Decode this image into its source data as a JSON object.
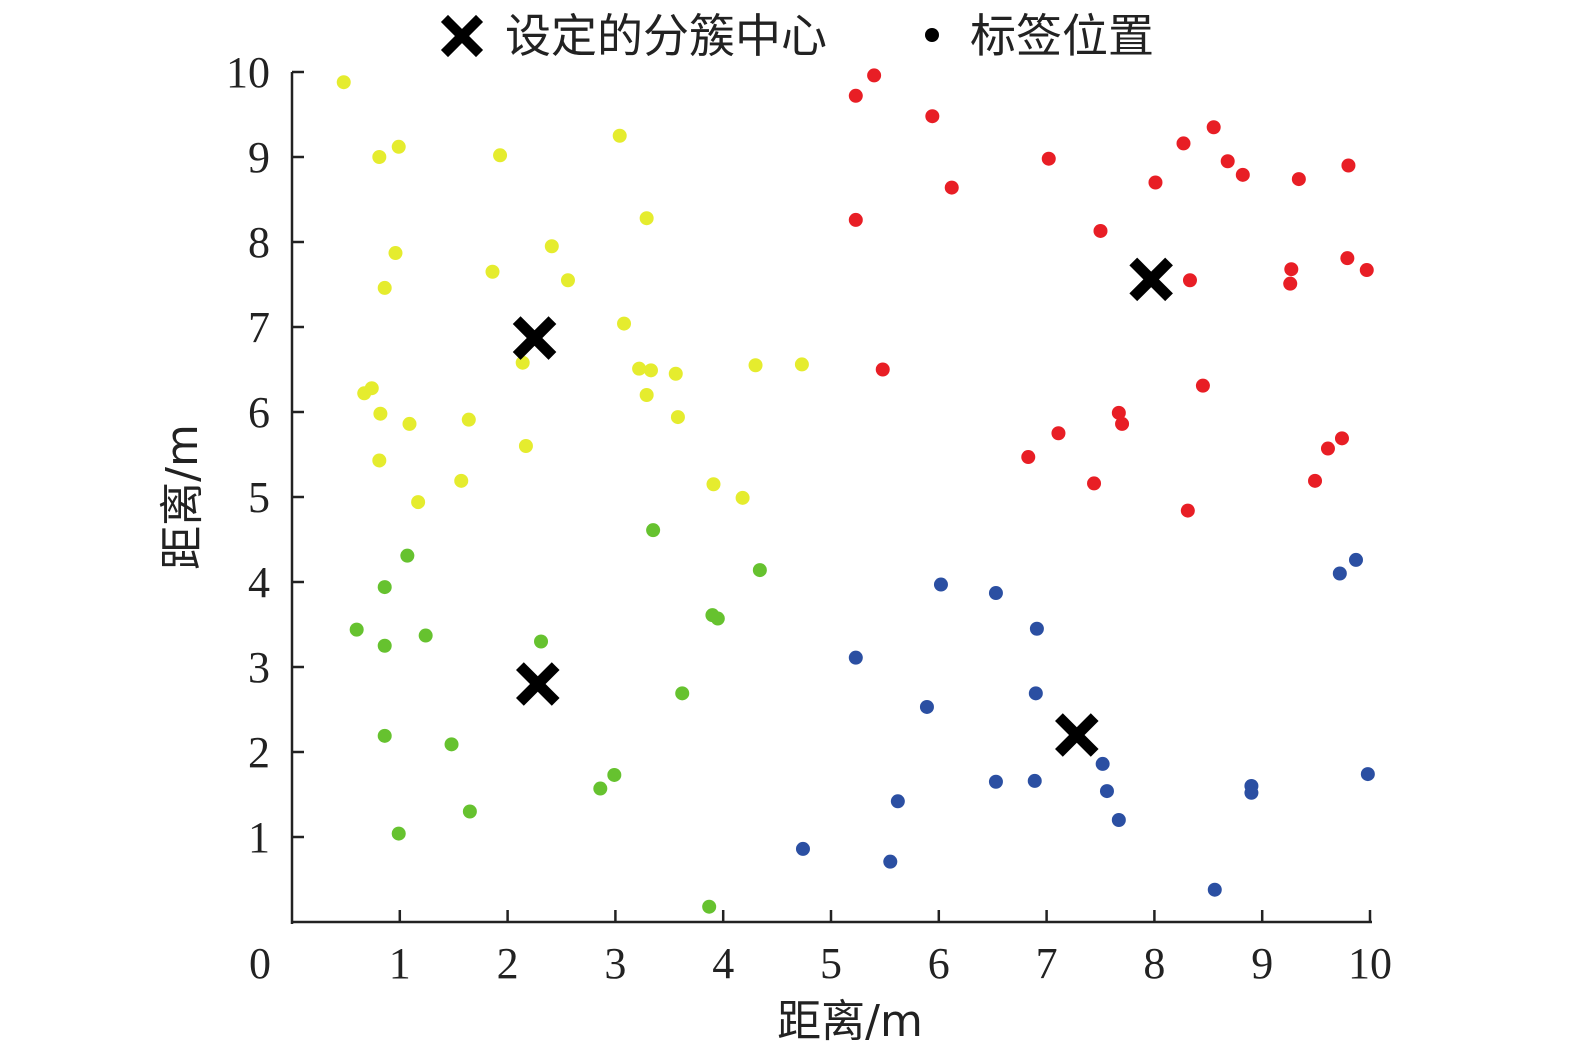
{
  "chart_data": {
    "type": "scatter",
    "xlabel": "距离/m",
    "ylabel": "距离/m",
    "xlim": [
      0,
      10
    ],
    "ylim": [
      0,
      10
    ],
    "x_ticks": [
      "0",
      "1",
      "2",
      "3",
      "4",
      "5",
      "6",
      "7",
      "8",
      "9",
      "10"
    ],
    "y_ticks": [
      "1",
      "2",
      "3",
      "4",
      "5",
      "6",
      "7",
      "8",
      "9",
      "10"
    ],
    "grid": false,
    "legend": {
      "placement": "top",
      "entries": [
        {
          "label": "设定的分簇中心",
          "marker": "x",
          "color": "#000000"
        },
        {
          "label": "标签位置",
          "marker": "dot",
          "color": "#000000"
        }
      ]
    },
    "cluster_centers": [
      {
        "x": 2.25,
        "y": 6.87
      },
      {
        "x": 7.97,
        "y": 7.56
      },
      {
        "x": 2.28,
        "y": 2.8
      },
      {
        "x": 7.28,
        "y": 2.2
      }
    ],
    "series": [
      {
        "color": "#e5ec2e",
        "points": [
          [
            0.48,
            9.88
          ],
          [
            0.81,
            9.0
          ],
          [
            0.99,
            9.12
          ],
          [
            1.93,
            9.02
          ],
          [
            3.04,
            9.25
          ],
          [
            3.29,
            8.28
          ],
          [
            0.96,
            7.87
          ],
          [
            2.41,
            7.95
          ],
          [
            0.86,
            7.46
          ],
          [
            1.86,
            7.65
          ],
          [
            2.56,
            7.55
          ],
          [
            3.08,
            7.04
          ],
          [
            2.14,
            6.58
          ],
          [
            3.22,
            6.51
          ],
          [
            3.33,
            6.49
          ],
          [
            3.56,
            6.45
          ],
          [
            4.3,
            6.55
          ],
          [
            4.73,
            6.56
          ],
          [
            0.67,
            6.22
          ],
          [
            0.74,
            6.28
          ],
          [
            0.82,
            5.98
          ],
          [
            3.29,
            6.2
          ],
          [
            1.09,
            5.86
          ],
          [
            1.64,
            5.91
          ],
          [
            3.58,
            5.94
          ],
          [
            2.17,
            5.6
          ],
          [
            0.81,
            5.43
          ],
          [
            1.57,
            5.19
          ],
          [
            3.91,
            5.15
          ],
          [
            4.18,
            4.99
          ],
          [
            1.17,
            4.94
          ]
        ]
      },
      {
        "color": "#e81e25",
        "points": [
          [
            5.4,
            9.96
          ],
          [
            5.23,
            9.72
          ],
          [
            5.94,
            9.48
          ],
          [
            7.02,
            8.98
          ],
          [
            8.27,
            9.16
          ],
          [
            8.55,
            9.35
          ],
          [
            8.68,
            8.95
          ],
          [
            8.82,
            8.79
          ],
          [
            9.34,
            8.74
          ],
          [
            9.8,
            8.9
          ],
          [
            6.12,
            8.64
          ],
          [
            8.01,
            8.7
          ],
          [
            5.23,
            8.26
          ],
          [
            7.5,
            8.13
          ],
          [
            8.33,
            7.55
          ],
          [
            9.27,
            7.68
          ],
          [
            9.26,
            7.51
          ],
          [
            9.79,
            7.81
          ],
          [
            9.97,
            7.67
          ],
          [
            5.48,
            6.5
          ],
          [
            8.45,
            6.31
          ],
          [
            7.67,
            5.99
          ],
          [
            7.7,
            5.86
          ],
          [
            7.11,
            5.75
          ],
          [
            9.74,
            5.69
          ],
          [
            9.61,
            5.57
          ],
          [
            6.83,
            5.47
          ],
          [
            7.44,
            5.16
          ],
          [
            9.49,
            5.19
          ],
          [
            8.31,
            4.84
          ]
        ]
      },
      {
        "color": "#66c22f",
        "points": [
          [
            3.35,
            4.61
          ],
          [
            1.07,
            4.31
          ],
          [
            4.34,
            4.14
          ],
          [
            0.86,
            3.94
          ],
          [
            0.6,
            3.44
          ],
          [
            3.9,
            3.61
          ],
          [
            3.95,
            3.57
          ],
          [
            1.24,
            3.37
          ],
          [
            0.86,
            3.25
          ],
          [
            2.31,
            3.3
          ],
          [
            3.62,
            2.69
          ],
          [
            0.86,
            2.19
          ],
          [
            1.48,
            2.09
          ],
          [
            2.99,
            1.73
          ],
          [
            2.86,
            1.57
          ],
          [
            1.65,
            1.3
          ],
          [
            0.99,
            1.04
          ],
          [
            3.87,
            0.18
          ]
        ]
      },
      {
        "color": "#2b4fa2",
        "points": [
          [
            6.02,
            3.97
          ],
          [
            6.53,
            3.87
          ],
          [
            6.91,
            3.45
          ],
          [
            5.23,
            3.11
          ],
          [
            6.9,
            2.69
          ],
          [
            5.89,
            2.53
          ],
          [
            7.52,
            1.86
          ],
          [
            6.53,
            1.65
          ],
          [
            6.89,
            1.66
          ],
          [
            7.56,
            1.54
          ],
          [
            5.62,
            1.42
          ],
          [
            7.67,
            1.2
          ],
          [
            4.74,
            0.86
          ],
          [
            5.55,
            0.71
          ],
          [
            8.56,
            0.38
          ],
          [
            8.9,
            1.6
          ],
          [
            8.9,
            1.52
          ],
          [
            9.98,
            1.74
          ],
          [
            9.72,
            4.1
          ],
          [
            9.87,
            4.26
          ]
        ]
      }
    ]
  }
}
